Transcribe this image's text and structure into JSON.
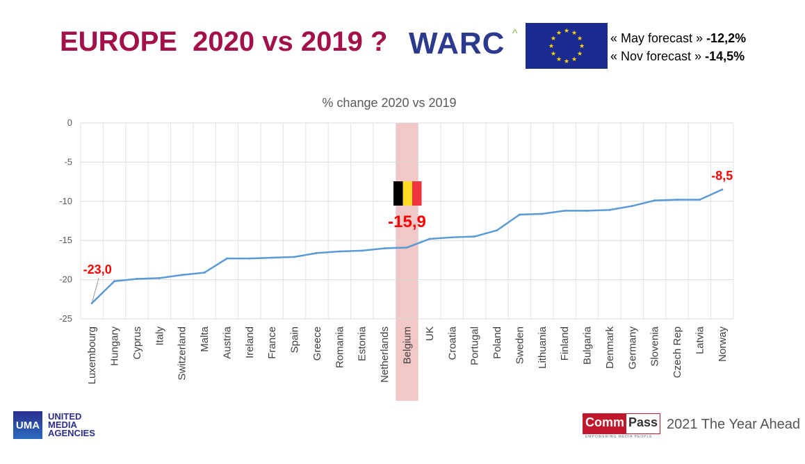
{
  "header": {
    "title": "EUROPE  2020 vs 2019 ?",
    "warc_logo": "WARC",
    "warc_caret": "^",
    "forecasts": [
      {
        "label": "« May forecast » ",
        "value": "-12,2%"
      },
      {
        "label": "« Nov forecast » ",
        "value": "-14,5%"
      }
    ]
  },
  "footer": {
    "uma_logo": "UMA",
    "uma_text": "UNITED MEDIA AGENCIES",
    "commpass_a": "Comm",
    "commpass_b": "Pass",
    "commpass_tag": "EMPOWERING MEDIA PEOPLE",
    "tagline": "2021 The Year Ahead"
  },
  "colors": {
    "line": "#5b9bd5",
    "highlight": "#f2c7c7",
    "label": "#ff0000",
    "title": "#a3114a"
  },
  "chart_data": {
    "type": "line",
    "title": "% change 2020 vs 2019",
    "xlabel": "",
    "ylabel": "",
    "ylim": [
      -25,
      0
    ],
    "yticks": [
      0,
      -5,
      -10,
      -15,
      -20,
      -25
    ],
    "grid": true,
    "categories": [
      "Luxembourg",
      "Hungary",
      "Cyprus",
      "Italy",
      "Switzerland",
      "Malta",
      "Austria",
      "Ireland",
      "France",
      "Spain",
      "Greece",
      "Romania",
      "Estonia",
      "Netherlands",
      "Belgium",
      "UK",
      "Croatia",
      "Portugal",
      "Poland",
      "Sweden",
      "Lithuania",
      "Finland",
      "Bulgaria",
      "Denmark",
      "Germany",
      "Slovenia",
      "Czech Rep",
      "Latvia",
      "Norway"
    ],
    "values": [
      -23.0,
      -20.2,
      -19.9,
      -19.8,
      -19.4,
      -19.1,
      -17.3,
      -17.3,
      -17.2,
      -17.1,
      -16.6,
      -16.4,
      -16.3,
      -16.0,
      -15.9,
      -14.8,
      -14.6,
      -14.5,
      -13.7,
      -11.7,
      -11.6,
      -11.2,
      -11.2,
      -11.1,
      -10.6,
      -9.9,
      -9.8,
      -9.8,
      -8.5
    ],
    "highlight": "Belgium",
    "annotations": [
      {
        "category": "Luxembourg",
        "text": "-23,0"
      },
      {
        "category": "Belgium",
        "text": "-15,9"
      },
      {
        "category": "Norway",
        "text": "-8,5"
      }
    ]
  }
}
